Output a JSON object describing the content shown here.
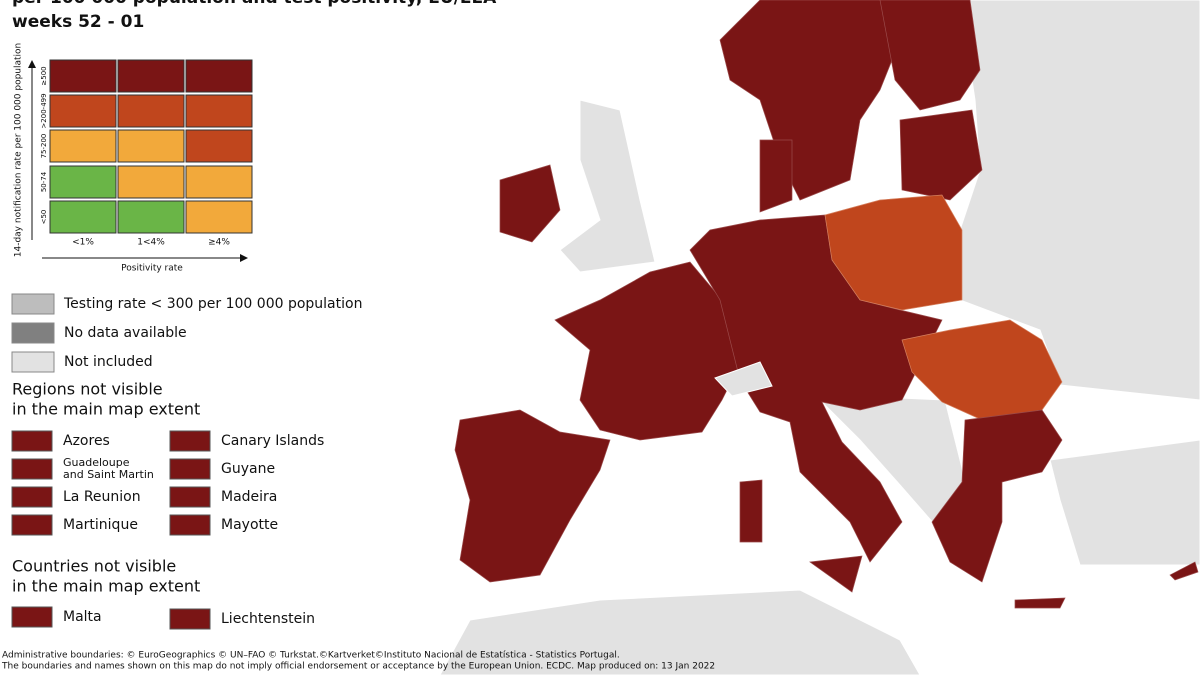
{
  "header": {
    "title_lines": [
      "per 100 000 population and test positivity, EU/EEA",
      "weeks 52 - 01"
    ]
  },
  "matrix": {
    "y_label": "14-day notification rate per 100 000 population",
    "x_label": "Positivity rate",
    "rows": [
      "≥500",
      ">200-499",
      "75-200",
      "50-74",
      "<50"
    ],
    "columns": [
      "<1%",
      "1<4%",
      "≥4%"
    ],
    "cells": [
      [
        "#7a1515",
        "#7a1515",
        "#7a1515"
      ],
      [
        "#c0461d",
        "#c0461d",
        "#c0461d"
      ],
      [
        "#f2a93b",
        "#f2a93b",
        "#c0461d"
      ],
      [
        "#6ab547",
        "#f2a93b",
        "#f2a93b"
      ],
      [
        "#6ab547",
        "#6ab547",
        "#f2a93b"
      ]
    ]
  },
  "legend": [
    {
      "label": "Testing rate < 300 per 100 000 population",
      "color": "#bdbdbd"
    },
    {
      "label": "No data available",
      "color": "#808080"
    },
    {
      "label": "Not included",
      "color": "#e2e2e2"
    }
  ],
  "regions": {
    "title_lines": [
      "Regions not visible",
      "in the main map extent"
    ],
    "items": [
      {
        "lines": [
          "Azores"
        ],
        "color": "#7a1515"
      },
      {
        "lines": [
          "Guadeloupe",
          "and Saint Martin"
        ],
        "color": "#7a1515"
      },
      {
        "lines": [
          "La Reunion"
        ],
        "color": "#7a1515"
      },
      {
        "lines": [
          "Martinique"
        ],
        "color": "#7a1515"
      },
      {
        "lines": [
          "Canary Islands"
        ],
        "color": "#7a1515"
      },
      {
        "lines": [
          "Guyane"
        ],
        "color": "#7a1515"
      },
      {
        "lines": [
          "Madeira"
        ],
        "color": "#7a1515"
      },
      {
        "lines": [
          "Mayotte"
        ],
        "color": "#7a1515"
      }
    ]
  },
  "countries": {
    "title_lines": [
      "Countries not visible",
      "in the main map extent"
    ],
    "items": [
      {
        "lines": [
          "Malta"
        ],
        "color": "#7a1515"
      },
      {
        "lines": [
          "Liechtenstein"
        ],
        "color": "#7a1515"
      }
    ]
  },
  "footer": [
    "Administrative boundaries: © EuroGeographics © UN–FAO © Turkstat.©Kartverket©Instituto Nacional de Estatística - Statistics Portugal.",
    "The boundaries and names shown on this map do not imply official endorsement or acceptance by the European Union. ECDC. Map produced on: 13 Jan 2022"
  ]
}
